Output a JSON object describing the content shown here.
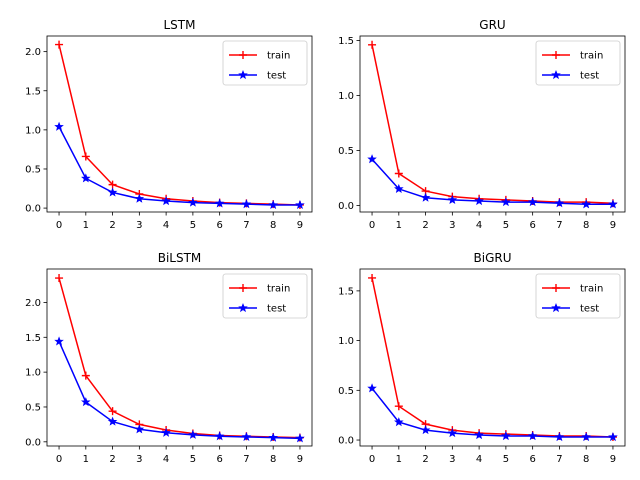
{
  "chart_data": [
    {
      "type": "line",
      "title": "LSTM",
      "x": [
        0,
        1,
        2,
        3,
        4,
        5,
        6,
        7,
        8,
        9
      ],
      "xticks": [
        "0",
        "1",
        "2",
        "3",
        "4",
        "5",
        "6",
        "7",
        "8",
        "9"
      ],
      "yticks": [
        "0.0",
        "0.5",
        "1.0",
        "1.5",
        "2.0"
      ],
      "ylim": [
        -0.05,
        2.2
      ],
      "legend_position": "upper-right",
      "grid": false,
      "series": [
        {
          "name": "train",
          "color": "#ff0000",
          "marker": "plus",
          "values": [
            2.09,
            0.66,
            0.3,
            0.18,
            0.12,
            0.09,
            0.07,
            0.06,
            0.05,
            0.04
          ]
        },
        {
          "name": "test",
          "color": "#0000ff",
          "marker": "star",
          "values": [
            1.04,
            0.38,
            0.2,
            0.12,
            0.09,
            0.07,
            0.06,
            0.05,
            0.04,
            0.04
          ]
        }
      ]
    },
    {
      "type": "line",
      "title": "GRU",
      "x": [
        0,
        1,
        2,
        3,
        4,
        5,
        6,
        7,
        8,
        9
      ],
      "xticks": [
        "0",
        "1",
        "2",
        "3",
        "4",
        "5",
        "6",
        "7",
        "8",
        "9"
      ],
      "yticks": [
        "0.0",
        "0.5",
        "1.0",
        "1.5"
      ],
      "ylim": [
        -0.06,
        1.54
      ],
      "legend_position": "upper-right",
      "grid": false,
      "series": [
        {
          "name": "train",
          "color": "#ff0000",
          "marker": "plus",
          "values": [
            1.46,
            0.29,
            0.13,
            0.08,
            0.06,
            0.05,
            0.04,
            0.03,
            0.03,
            0.02
          ]
        },
        {
          "name": "test",
          "color": "#0000ff",
          "marker": "star",
          "values": [
            0.42,
            0.15,
            0.07,
            0.05,
            0.04,
            0.03,
            0.03,
            0.02,
            0.01,
            0.01
          ]
        }
      ]
    },
    {
      "type": "line",
      "title": "BiLSTM",
      "x": [
        0,
        1,
        2,
        3,
        4,
        5,
        6,
        7,
        8,
        9
      ],
      "xticks": [
        "0",
        "1",
        "2",
        "3",
        "4",
        "5",
        "6",
        "7",
        "8",
        "9"
      ],
      "yticks": [
        "0.0",
        "0.5",
        "1.0",
        "1.5",
        "2.0"
      ],
      "ylim": [
        -0.06,
        2.48
      ],
      "legend_position": "upper-right",
      "grid": false,
      "series": [
        {
          "name": "train",
          "color": "#ff0000",
          "marker": "plus",
          "values": [
            2.35,
            0.95,
            0.44,
            0.25,
            0.17,
            0.12,
            0.09,
            0.08,
            0.07,
            0.06
          ]
        },
        {
          "name": "test",
          "color": "#0000ff",
          "marker": "star",
          "values": [
            1.44,
            0.57,
            0.29,
            0.18,
            0.13,
            0.1,
            0.08,
            0.07,
            0.06,
            0.05
          ]
        }
      ]
    },
    {
      "type": "line",
      "title": "BiGRU",
      "x": [
        0,
        1,
        2,
        3,
        4,
        5,
        6,
        7,
        8,
        9
      ],
      "xticks": [
        "0",
        "1",
        "2",
        "3",
        "4",
        "5",
        "6",
        "7",
        "8",
        "9"
      ],
      "yticks": [
        "0.0",
        "0.5",
        "1.0",
        "1.5"
      ],
      "ylim": [
        -0.06,
        1.72
      ],
      "legend_position": "upper-right",
      "grid": false,
      "series": [
        {
          "name": "train",
          "color": "#ff0000",
          "marker": "plus",
          "values": [
            1.63,
            0.34,
            0.16,
            0.1,
            0.07,
            0.06,
            0.05,
            0.04,
            0.04,
            0.03
          ]
        },
        {
          "name": "test",
          "color": "#0000ff",
          "marker": "star",
          "values": [
            0.52,
            0.18,
            0.1,
            0.07,
            0.05,
            0.04,
            0.04,
            0.03,
            0.03,
            0.03
          ]
        }
      ]
    }
  ]
}
